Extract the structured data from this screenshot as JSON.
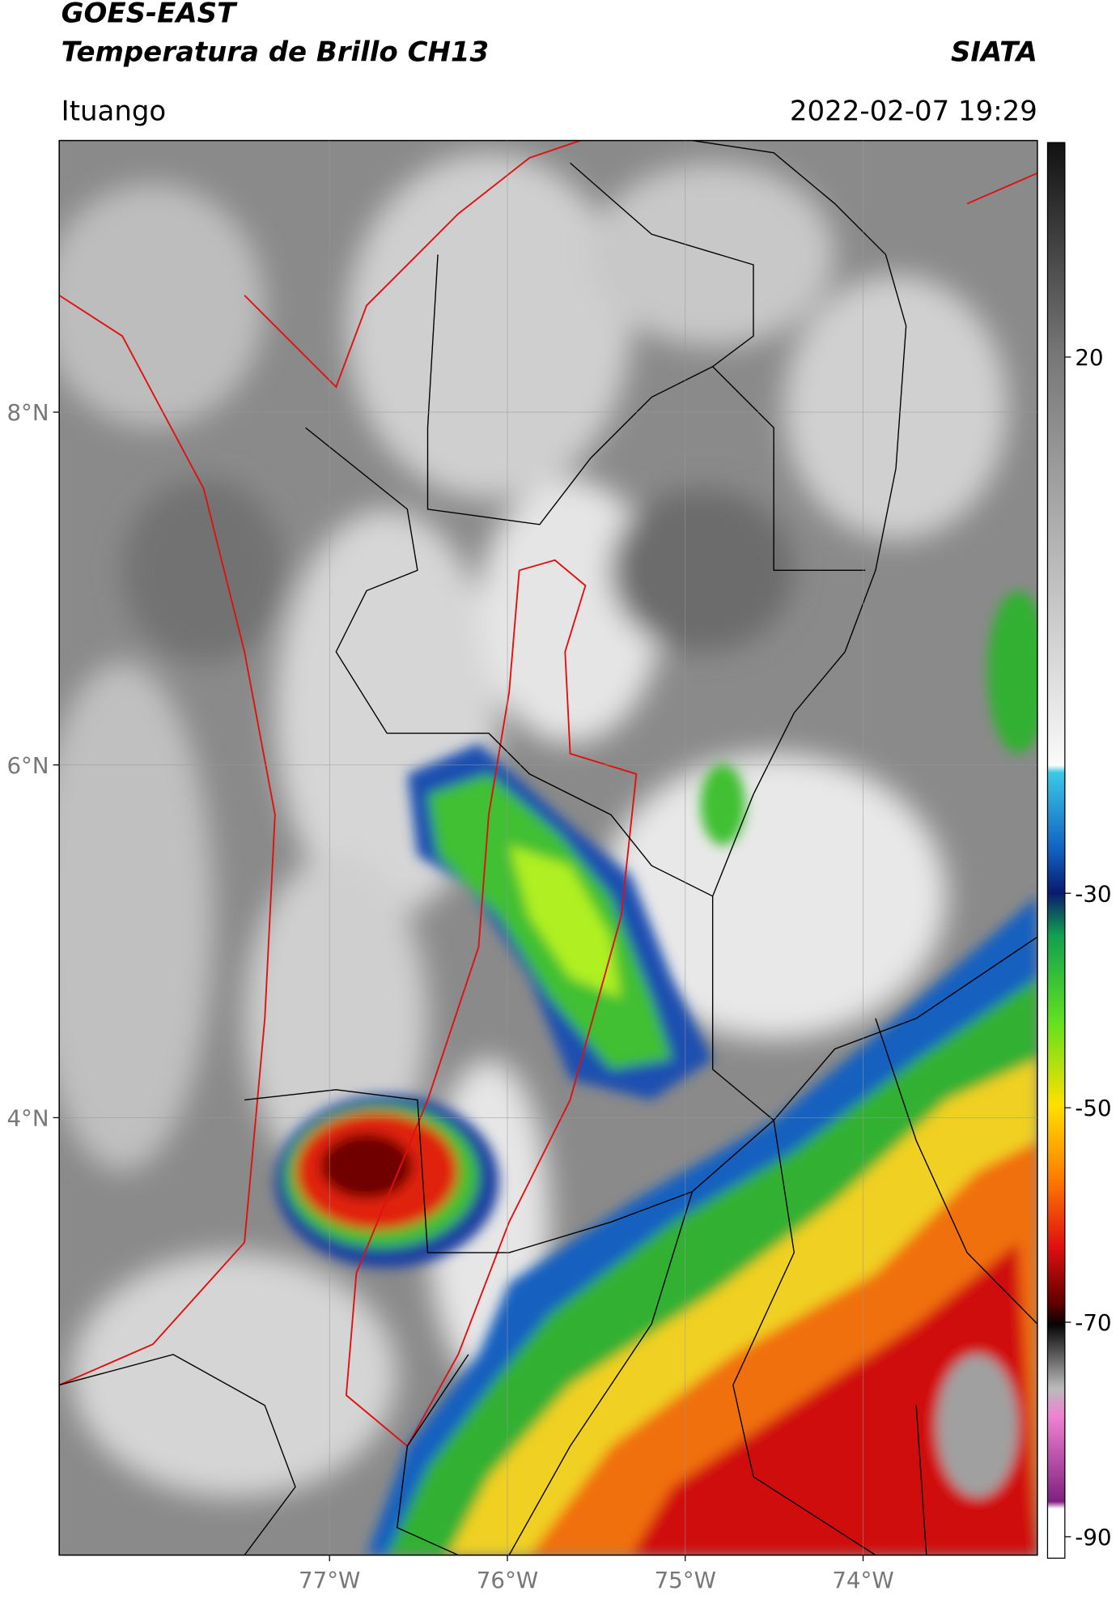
{
  "header": {
    "title": "GOES-EAST",
    "subtitle": "Temperatura de Brillo CH13",
    "source": "SIATA",
    "region": "Ituango",
    "datetime": "2022-02-07 19:29"
  },
  "map": {
    "xlim": [
      -78.52,
      -73.02
    ],
    "ylim": [
      1.52,
      9.54
    ],
    "xticks": [
      {
        "value": -77,
        "label": "77°W"
      },
      {
        "value": -76,
        "label": "76°W"
      },
      {
        "value": -75,
        "label": "75°W"
      },
      {
        "value": -74,
        "label": "74°W"
      }
    ],
    "yticks": [
      {
        "value": 4,
        "label": "4°N"
      },
      {
        "value": 6,
        "label": "6°N"
      },
      {
        "value": 8,
        "label": "8°N"
      }
    ],
    "grid": true
  },
  "colorbar": {
    "lim": [
      -92,
      40
    ],
    "ticks": [
      20,
      -30,
      -50,
      -70,
      -90
    ]
  }
}
